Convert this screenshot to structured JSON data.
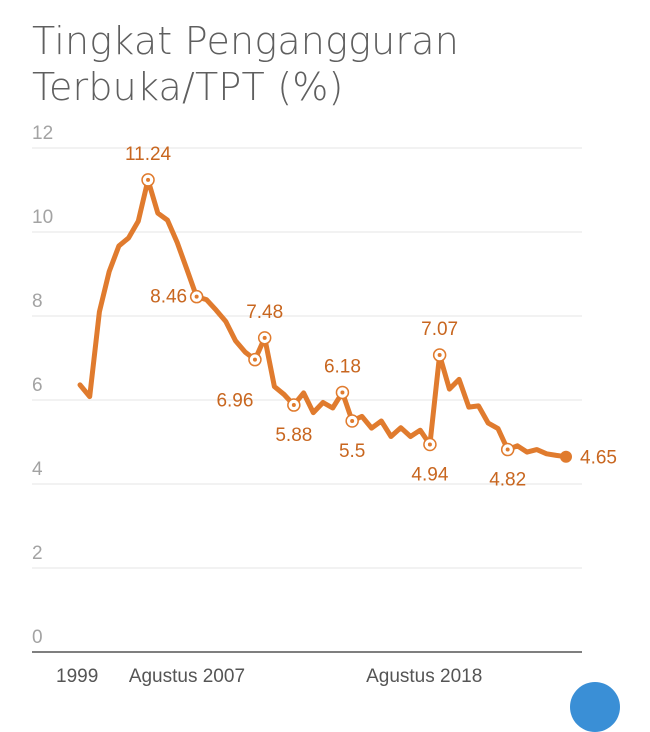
{
  "page": {
    "title": "Tingkat Pengangguran Terbuka/TPT (%)"
  },
  "chart_data": {
    "type": "line",
    "title": "Tingkat Pengangguran Terbuka/TPT (%)",
    "xlabel": "",
    "ylabel": "",
    "ylim": [
      0,
      12
    ],
    "yticks": [
      "0",
      "2",
      "4",
      "6",
      "8",
      "10",
      "12"
    ],
    "xtick_labels": [
      "1999",
      "Agustus 2007",
      "Agustus 2018"
    ],
    "grid": true,
    "line_color": "#e07b2e",
    "series": [
      {
        "values": [
          6.36,
          6.08,
          8.1,
          9.06,
          9.67,
          9.86,
          10.26,
          11.24,
          10.45,
          10.28,
          9.75,
          9.11,
          8.46,
          8.39,
          8.14,
          7.87,
          7.41,
          7.14,
          6.96,
          7.48,
          6.32,
          6.13,
          5.88,
          6.17,
          5.7,
          5.94,
          5.81,
          6.18,
          5.5,
          5.61,
          5.33,
          5.5,
          5.13,
          5.34,
          5.13,
          5.28,
          4.94,
          7.07,
          6.26,
          6.49,
          5.83,
          5.86,
          5.45,
          5.32,
          4.82,
          4.91,
          4.76,
          4.82,
          4.72,
          4.68,
          4.65
        ]
      }
    ],
    "annotations": [
      {
        "index": 7,
        "label": "11.24"
      },
      {
        "index": 12,
        "label": "8.46"
      },
      {
        "index": 18,
        "label": "6.96"
      },
      {
        "index": 19,
        "label": "7.48"
      },
      {
        "index": 22,
        "label": "5.88"
      },
      {
        "index": 27,
        "label": "6.18"
      },
      {
        "index": 28,
        "label": "5.5"
      },
      {
        "index": 36,
        "label": "4.94"
      },
      {
        "index": 37,
        "label": "7.07"
      },
      {
        "index": 44,
        "label": "4.82"
      },
      {
        "index": 50,
        "label": "4.65"
      }
    ]
  }
}
